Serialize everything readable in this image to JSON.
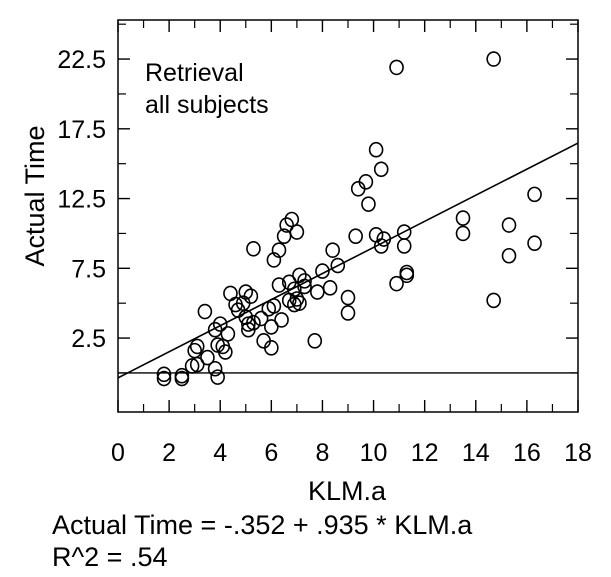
{
  "chart_data": {
    "type": "scatter",
    "title": "",
    "annotation_lines": [
      "Retrieval",
      "all subjects"
    ],
    "xlabel": "KLM.a",
    "ylabel": "Actual Time",
    "xlim": [
      0,
      18
    ],
    "ylim": [
      -2.8,
      25.3
    ],
    "xticks": [
      0,
      2,
      4,
      6,
      8,
      10,
      12,
      14,
      16,
      18
    ],
    "xtick_labels": [
      "0",
      "2",
      "4",
      "6",
      "8",
      "10",
      "12",
      "14",
      "16",
      "18"
    ],
    "yticks": [
      2.5,
      7.5,
      12.5,
      17.5,
      22.5
    ],
    "ytick_labels": [
      "2.5",
      "7.5",
      "12.5",
      "17.5",
      "22.5"
    ],
    "baseline_y": 0,
    "grid": false,
    "regression": {
      "intercept": -0.352,
      "slope": 0.935
    },
    "points": [
      {
        "x": 1.8,
        "y": -0.1
      },
      {
        "x": 1.8,
        "y": -0.4
      },
      {
        "x": 2.5,
        "y": -0.2
      },
      {
        "x": 2.5,
        "y": -0.4
      },
      {
        "x": 2.9,
        "y": 0.5
      },
      {
        "x": 3.1,
        "y": 0.6
      },
      {
        "x": 3.0,
        "y": 1.6
      },
      {
        "x": 3.1,
        "y": 1.9
      },
      {
        "x": 3.5,
        "y": 1.1
      },
      {
        "x": 3.4,
        "y": 4.4
      },
      {
        "x": 3.8,
        "y": 0.3
      },
      {
        "x": 3.9,
        "y": -0.3
      },
      {
        "x": 3.8,
        "y": 3.1
      },
      {
        "x": 3.9,
        "y": 2.0
      },
      {
        "x": 4.0,
        "y": 3.5
      },
      {
        "x": 4.1,
        "y": 1.9
      },
      {
        "x": 4.2,
        "y": 1.5
      },
      {
        "x": 4.3,
        "y": 2.8
      },
      {
        "x": 4.4,
        "y": 5.7
      },
      {
        "x": 4.6,
        "y": 4.9
      },
      {
        "x": 4.7,
        "y": 4.5
      },
      {
        "x": 4.9,
        "y": 5.0
      },
      {
        "x": 5.0,
        "y": 4.0
      },
      {
        "x": 5.0,
        "y": 5.8
      },
      {
        "x": 5.1,
        "y": 3.5
      },
      {
        "x": 5.1,
        "y": 3.1
      },
      {
        "x": 5.2,
        "y": 5.5
      },
      {
        "x": 5.3,
        "y": 3.6
      },
      {
        "x": 5.3,
        "y": 8.9
      },
      {
        "x": 5.6,
        "y": 3.9
      },
      {
        "x": 5.7,
        "y": 2.3
      },
      {
        "x": 5.9,
        "y": 4.6
      },
      {
        "x": 6.0,
        "y": 3.3
      },
      {
        "x": 6.0,
        "y": 1.8
      },
      {
        "x": 6.1,
        "y": 8.1
      },
      {
        "x": 6.1,
        "y": 4.8
      },
      {
        "x": 6.3,
        "y": 6.3
      },
      {
        "x": 6.3,
        "y": 8.8
      },
      {
        "x": 6.4,
        "y": 3.8
      },
      {
        "x": 6.5,
        "y": 9.8
      },
      {
        "x": 6.6,
        "y": 10.6
      },
      {
        "x": 6.7,
        "y": 6.5
      },
      {
        "x": 6.7,
        "y": 5.2
      },
      {
        "x": 6.8,
        "y": 11.0
      },
      {
        "x": 6.9,
        "y": 4.9
      },
      {
        "x": 6.9,
        "y": 6.0
      },
      {
        "x": 7.0,
        "y": 5.3
      },
      {
        "x": 7.0,
        "y": 10.1
      },
      {
        "x": 7.1,
        "y": 7.0
      },
      {
        "x": 7.1,
        "y": 5.0
      },
      {
        "x": 7.3,
        "y": 6.6
      },
      {
        "x": 7.3,
        "y": 6.2
      },
      {
        "x": 7.7,
        "y": 2.3
      },
      {
        "x": 7.8,
        "y": 5.8
      },
      {
        "x": 8.0,
        "y": 7.3
      },
      {
        "x": 8.3,
        "y": 6.1
      },
      {
        "x": 8.4,
        "y": 8.8
      },
      {
        "x": 8.6,
        "y": 7.7
      },
      {
        "x": 9.0,
        "y": 5.4
      },
      {
        "x": 9.0,
        "y": 4.3
      },
      {
        "x": 9.3,
        "y": 9.8
      },
      {
        "x": 9.4,
        "y": 13.2
      },
      {
        "x": 9.7,
        "y": 13.7
      },
      {
        "x": 9.8,
        "y": 12.1
      },
      {
        "x": 10.1,
        "y": 9.9
      },
      {
        "x": 10.1,
        "y": 16.0
      },
      {
        "x": 10.3,
        "y": 9.1
      },
      {
        "x": 10.3,
        "y": 14.6
      },
      {
        "x": 10.4,
        "y": 9.6
      },
      {
        "x": 10.9,
        "y": 6.4
      },
      {
        "x": 10.9,
        "y": 21.9
      },
      {
        "x": 11.2,
        "y": 10.1
      },
      {
        "x": 11.2,
        "y": 9.1
      },
      {
        "x": 11.3,
        "y": 7.0
      },
      {
        "x": 11.3,
        "y": 7.2
      },
      {
        "x": 13.5,
        "y": 11.1
      },
      {
        "x": 13.5,
        "y": 10.0
      },
      {
        "x": 14.7,
        "y": 22.5
      },
      {
        "x": 14.7,
        "y": 5.2
      },
      {
        "x": 15.3,
        "y": 10.6
      },
      {
        "x": 15.3,
        "y": 8.4
      },
      {
        "x": 16.3,
        "y": 12.8
      },
      {
        "x": 16.3,
        "y": 9.3
      }
    ]
  },
  "equation": {
    "line1": "Actual Time = -.352 + .935 * KLM.a",
    "line2": "R^2 = .54"
  }
}
